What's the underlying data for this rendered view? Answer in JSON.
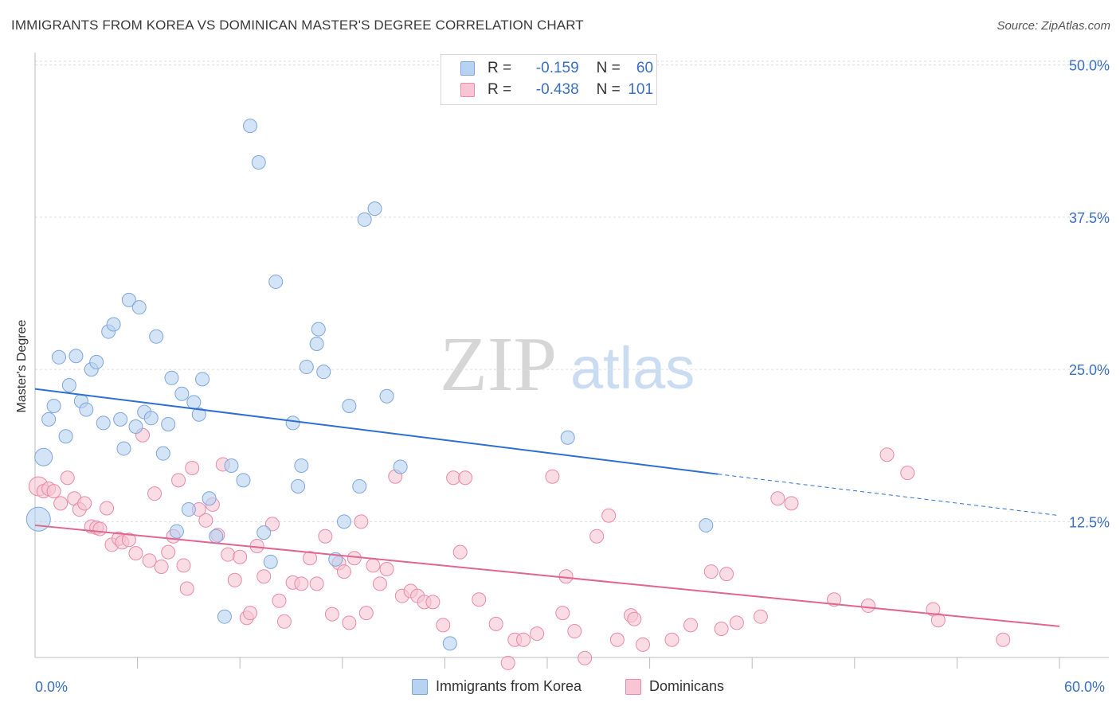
{
  "title": "IMMIGRANTS FROM KOREA VS DOMINICAN MASTER'S DEGREE CORRELATION CHART",
  "source": "Source: ZipAtlas.com",
  "watermark": {
    "zip": "ZIP",
    "atlas": "atlas"
  },
  "legend_stats": [
    {
      "r_label": "R =",
      "r_value": "-0.159",
      "n_label": "N =",
      "n_value": "60"
    },
    {
      "r_label": "R =",
      "r_value": "-0.438",
      "n_label": "N =",
      "n_value": "101"
    }
  ],
  "bottom_legend": [
    "Immigrants from Korea",
    "Dominicans"
  ],
  "x_axis_labels": {
    "left": "0.0%",
    "right": "60.0%"
  },
  "colors": {
    "korea_fill": "#b8d2f2",
    "korea_stroke": "#7ea6dc",
    "korea_line": "#2f6fcf",
    "dom_fill": "#f7c5d4",
    "dom_stroke": "#e98aa8",
    "dom_line": "#e0668f",
    "axis_text": "#3a6fc4",
    "grid": "#dddddd"
  },
  "chart_data": {
    "type": "scatter",
    "title": "IMMIGRANTS FROM KOREA VS DOMINICAN MASTER'S DEGREE CORRELATION CHART",
    "xlabel": "",
    "ylabel": "Master's Degree",
    "xlim": [
      0,
      60
    ],
    "ylim": [
      0,
      52
    ],
    "y_ticks": [
      12.5,
      25.0,
      37.5,
      50.0
    ],
    "y_tick_labels": [
      "12.5%",
      "25.0%",
      "37.5%",
      "50.0%"
    ],
    "grid": true,
    "legend_placement": "top-center",
    "series": [
      {
        "name": "Immigrants from Korea",
        "r": -0.159,
        "n": 60,
        "trend": {
          "x0": 0,
          "y0": 23.4,
          "x1": 40,
          "y1": 16.4,
          "dashed_to_x": 60,
          "dashed_y": 13.0
        },
        "points": [
          [
            0.2,
            12.7
          ],
          [
            0.5,
            17.8
          ],
          [
            0.8,
            20.9
          ],
          [
            1.1,
            22.0
          ],
          [
            1.4,
            26.0
          ],
          [
            1.8,
            19.5
          ],
          [
            2.0,
            23.7
          ],
          [
            2.4,
            26.1
          ],
          [
            2.7,
            22.4
          ],
          [
            3.0,
            21.7
          ],
          [
            3.3,
            25.0
          ],
          [
            3.6,
            25.6
          ],
          [
            4.0,
            20.6
          ],
          [
            4.3,
            28.1
          ],
          [
            4.6,
            28.7
          ],
          [
            5.0,
            20.9
          ],
          [
            5.2,
            18.5
          ],
          [
            5.5,
            30.7
          ],
          [
            5.9,
            20.3
          ],
          [
            6.1,
            30.1
          ],
          [
            6.4,
            21.5
          ],
          [
            6.8,
            21.0
          ],
          [
            7.1,
            27.7
          ],
          [
            7.5,
            18.1
          ],
          [
            7.8,
            20.5
          ],
          [
            8.0,
            24.3
          ],
          [
            8.3,
            11.7
          ],
          [
            8.6,
            23.0
          ],
          [
            9.0,
            13.5
          ],
          [
            9.3,
            22.3
          ],
          [
            9.6,
            21.3
          ],
          [
            9.8,
            24.2
          ],
          [
            10.2,
            14.4
          ],
          [
            10.6,
            11.3
          ],
          [
            11.1,
            4.7
          ],
          [
            11.5,
            17.1
          ],
          [
            12.2,
            15.9
          ],
          [
            12.6,
            45.0
          ],
          [
            13.1,
            42.0
          ],
          [
            13.4,
            11.6
          ],
          [
            13.8,
            9.2
          ],
          [
            14.1,
            32.2
          ],
          [
            15.1,
            20.6
          ],
          [
            15.4,
            15.4
          ],
          [
            15.6,
            17.1
          ],
          [
            15.9,
            25.2
          ],
          [
            16.5,
            27.1
          ],
          [
            16.6,
            28.3
          ],
          [
            16.9,
            24.8
          ],
          [
            17.6,
            9.4
          ],
          [
            18.1,
            12.5
          ],
          [
            18.4,
            22.0
          ],
          [
            19.0,
            15.4
          ],
          [
            19.3,
            37.3
          ],
          [
            19.9,
            38.2
          ],
          [
            20.6,
            22.8
          ],
          [
            21.4,
            17.0
          ],
          [
            24.3,
            2.5
          ],
          [
            31.2,
            19.4
          ],
          [
            39.3,
            12.2
          ]
        ]
      },
      {
        "name": "Dominicans",
        "r": -0.438,
        "n": 101,
        "trend": {
          "x0": 0,
          "y0": 12.2,
          "x1": 60,
          "y1": 3.9
        },
        "points": [
          [
            0.2,
            15.4
          ],
          [
            0.5,
            15.0
          ],
          [
            0.8,
            15.2
          ],
          [
            1.1,
            15.0
          ],
          [
            1.5,
            14.0
          ],
          [
            1.9,
            16.1
          ],
          [
            2.3,
            14.4
          ],
          [
            2.6,
            13.5
          ],
          [
            2.9,
            14.0
          ],
          [
            3.3,
            12.1
          ],
          [
            3.6,
            12.0
          ],
          [
            3.8,
            11.9
          ],
          [
            4.2,
            13.6
          ],
          [
            4.5,
            10.6
          ],
          [
            4.9,
            11.1
          ],
          [
            5.1,
            10.8
          ],
          [
            5.5,
            11.0
          ],
          [
            5.9,
            9.9
          ],
          [
            6.3,
            19.6
          ],
          [
            6.7,
            9.3
          ],
          [
            7.0,
            14.8
          ],
          [
            7.4,
            8.8
          ],
          [
            7.8,
            10.0
          ],
          [
            8.1,
            11.3
          ],
          [
            8.4,
            15.9
          ],
          [
            8.7,
            8.9
          ],
          [
            8.9,
            7.0
          ],
          [
            9.2,
            16.9
          ],
          [
            9.6,
            13.5
          ],
          [
            10.0,
            12.6
          ],
          [
            10.4,
            13.9
          ],
          [
            10.7,
            11.4
          ],
          [
            11.0,
            17.2
          ],
          [
            11.3,
            9.8
          ],
          [
            11.7,
            7.7
          ],
          [
            12.0,
            9.6
          ],
          [
            12.4,
            4.6
          ],
          [
            12.6,
            5.0
          ],
          [
            13.0,
            10.5
          ],
          [
            13.4,
            8.0
          ],
          [
            13.9,
            12.3
          ],
          [
            14.3,
            6.0
          ],
          [
            14.6,
            4.3
          ],
          [
            15.1,
            7.5
          ],
          [
            15.6,
            7.4
          ],
          [
            16.1,
            9.5
          ],
          [
            16.5,
            7.4
          ],
          [
            17.0,
            11.3
          ],
          [
            17.4,
            4.9
          ],
          [
            17.8,
            9.1
          ],
          [
            18.1,
            8.4
          ],
          [
            18.4,
            4.2
          ],
          [
            18.7,
            9.5
          ],
          [
            19.1,
            12.5
          ],
          [
            19.4,
            5.0
          ],
          [
            19.8,
            8.9
          ],
          [
            20.2,
            7.4
          ],
          [
            20.6,
            8.6
          ],
          [
            21.1,
            16.2
          ],
          [
            21.5,
            6.4
          ],
          [
            22.0,
            6.8
          ],
          [
            22.4,
            6.4
          ],
          [
            22.8,
            5.9
          ],
          [
            23.3,
            5.9
          ],
          [
            23.9,
            4.0
          ],
          [
            24.5,
            16.1
          ],
          [
            24.9,
            10.0
          ],
          [
            25.2,
            16.1
          ],
          [
            26.0,
            6.1
          ],
          [
            27.0,
            4.1
          ],
          [
            27.7,
            0.9
          ],
          [
            28.1,
            2.8
          ],
          [
            28.6,
            2.8
          ],
          [
            29.4,
            3.3
          ],
          [
            30.3,
            16.2
          ],
          [
            30.9,
            5.0
          ],
          [
            31.1,
            8.0
          ],
          [
            31.6,
            3.5
          ],
          [
            32.2,
            1.3
          ],
          [
            32.9,
            11.3
          ],
          [
            33.6,
            13.0
          ],
          [
            34.1,
            2.8
          ],
          [
            34.9,
            4.8
          ],
          [
            35.1,
            4.5
          ],
          [
            35.6,
            2.4
          ],
          [
            37.3,
            2.8
          ],
          [
            38.4,
            4.0
          ],
          [
            39.6,
            8.4
          ],
          [
            40.2,
            3.7
          ],
          [
            40.5,
            8.2
          ],
          [
            41.1,
            4.2
          ],
          [
            42.5,
            4.7
          ],
          [
            43.5,
            14.4
          ],
          [
            44.3,
            14.0
          ],
          [
            46.8,
            6.1
          ],
          [
            48.8,
            5.6
          ],
          [
            49.9,
            18.0
          ],
          [
            51.1,
            16.5
          ],
          [
            52.6,
            5.3
          ],
          [
            52.9,
            4.4
          ],
          [
            56.7,
            2.8
          ]
        ]
      }
    ]
  }
}
